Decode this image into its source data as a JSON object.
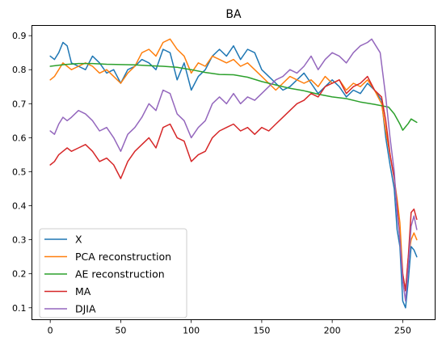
{
  "chart_data": {
    "type": "line",
    "title": "BA",
    "xlabel": "",
    "ylabel": "",
    "xlim": [
      -13,
      273
    ],
    "ylim": [
      0.065,
      0.93
    ],
    "xticks": [
      0,
      50,
      100,
      150,
      200,
      250
    ],
    "xtick_labels": [
      "0",
      "50",
      "100",
      "150",
      "200",
      "250"
    ],
    "yticks": [
      0.1,
      0.2,
      0.3,
      0.4,
      0.5,
      0.6,
      0.7,
      0.8,
      0.9
    ],
    "ytick_labels": [
      "0.1",
      "0.2",
      "0.3",
      "0.4",
      "0.5",
      "0.6",
      "0.7",
      "0.8",
      "0.9"
    ],
    "grid": false,
    "legend_position": "lower-left",
    "series": [
      {
        "name": "X",
        "color": "#1f77b4",
        "x": [
          0,
          3,
          6,
          9,
          12,
          15,
          20,
          25,
          30,
          35,
          40,
          45,
          50,
          55,
          60,
          65,
          70,
          75,
          80,
          85,
          90,
          95,
          100,
          105,
          110,
          115,
          120,
          125,
          130,
          135,
          140,
          145,
          150,
          155,
          160,
          165,
          170,
          175,
          180,
          185,
          190,
          195,
          200,
          205,
          210,
          215,
          220,
          225,
          230,
          235,
          238,
          241,
          244,
          246,
          248,
          250,
          252,
          254,
          256,
          258,
          260
        ],
        "y": [
          0.84,
          0.83,
          0.85,
          0.88,
          0.87,
          0.82,
          0.81,
          0.8,
          0.84,
          0.82,
          0.79,
          0.8,
          0.76,
          0.8,
          0.81,
          0.83,
          0.82,
          0.8,
          0.86,
          0.85,
          0.77,
          0.82,
          0.74,
          0.78,
          0.8,
          0.84,
          0.86,
          0.84,
          0.87,
          0.83,
          0.86,
          0.85,
          0.8,
          0.78,
          0.76,
          0.74,
          0.75,
          0.77,
          0.79,
          0.76,
          0.73,
          0.75,
          0.77,
          0.75,
          0.72,
          0.74,
          0.73,
          0.76,
          0.74,
          0.71,
          0.6,
          0.52,
          0.45,
          0.33,
          0.28,
          0.12,
          0.1,
          0.18,
          0.28,
          0.27,
          0.25
        ]
      },
      {
        "name": "PCA reconstruction",
        "color": "#ff7f0e",
        "x": [
          0,
          3,
          6,
          9,
          12,
          15,
          20,
          25,
          30,
          35,
          40,
          45,
          50,
          55,
          60,
          65,
          70,
          75,
          80,
          85,
          90,
          95,
          100,
          105,
          110,
          115,
          120,
          125,
          130,
          135,
          140,
          145,
          150,
          155,
          160,
          165,
          170,
          175,
          180,
          185,
          190,
          195,
          200,
          205,
          210,
          215,
          220,
          225,
          230,
          235,
          238,
          241,
          244,
          246,
          248,
          250,
          252,
          254,
          256,
          258,
          260
        ],
        "y": [
          0.77,
          0.78,
          0.8,
          0.82,
          0.81,
          0.8,
          0.81,
          0.82,
          0.81,
          0.79,
          0.8,
          0.78,
          0.76,
          0.79,
          0.81,
          0.85,
          0.86,
          0.84,
          0.88,
          0.89,
          0.86,
          0.84,
          0.79,
          0.82,
          0.81,
          0.84,
          0.83,
          0.82,
          0.83,
          0.81,
          0.82,
          0.8,
          0.78,
          0.76,
          0.74,
          0.76,
          0.78,
          0.77,
          0.76,
          0.77,
          0.75,
          0.78,
          0.76,
          0.77,
          0.74,
          0.76,
          0.75,
          0.77,
          0.74,
          0.7,
          0.62,
          0.55,
          0.48,
          0.42,
          0.35,
          0.2,
          0.15,
          0.25,
          0.3,
          0.32,
          0.3
        ]
      },
      {
        "name": "AE reconstruction",
        "color": "#2ca02c",
        "x": [
          0,
          10,
          20,
          30,
          40,
          50,
          60,
          70,
          80,
          90,
          100,
          110,
          120,
          130,
          140,
          150,
          160,
          170,
          180,
          190,
          200,
          210,
          220,
          230,
          240,
          244,
          248,
          250,
          252,
          254,
          256,
          258,
          260
        ],
        "y": [
          0.81,
          0.815,
          0.818,
          0.818,
          0.816,
          0.815,
          0.814,
          0.812,
          0.81,
          0.807,
          0.8,
          0.792,
          0.786,
          0.785,
          0.778,
          0.765,
          0.755,
          0.745,
          0.738,
          0.728,
          0.72,
          0.715,
          0.705,
          0.698,
          0.69,
          0.67,
          0.64,
          0.622,
          0.632,
          0.642,
          0.655,
          0.65,
          0.645
        ]
      },
      {
        "name": "MA",
        "color": "#d62728",
        "x": [
          0,
          3,
          6,
          9,
          12,
          15,
          20,
          25,
          30,
          35,
          40,
          45,
          50,
          55,
          60,
          65,
          70,
          75,
          80,
          85,
          90,
          95,
          100,
          105,
          110,
          115,
          120,
          125,
          130,
          135,
          140,
          145,
          150,
          155,
          160,
          165,
          170,
          175,
          180,
          185,
          190,
          195,
          200,
          205,
          210,
          215,
          220,
          225,
          230,
          235,
          238,
          241,
          244,
          246,
          248,
          250,
          252,
          254,
          256,
          258,
          260
        ],
        "y": [
          0.52,
          0.53,
          0.55,
          0.56,
          0.57,
          0.56,
          0.57,
          0.58,
          0.56,
          0.53,
          0.54,
          0.52,
          0.48,
          0.53,
          0.56,
          0.58,
          0.6,
          0.57,
          0.63,
          0.64,
          0.6,
          0.59,
          0.53,
          0.55,
          0.56,
          0.6,
          0.62,
          0.63,
          0.64,
          0.62,
          0.63,
          0.61,
          0.63,
          0.62,
          0.64,
          0.66,
          0.68,
          0.7,
          0.71,
          0.73,
          0.72,
          0.75,
          0.76,
          0.77,
          0.73,
          0.75,
          0.76,
          0.78,
          0.74,
          0.72,
          0.65,
          0.55,
          0.48,
          0.4,
          0.3,
          0.2,
          0.15,
          0.25,
          0.38,
          0.39,
          0.36
        ]
      },
      {
        "name": "DJIA",
        "color": "#9467bd",
        "x": [
          0,
          3,
          6,
          9,
          12,
          15,
          20,
          25,
          30,
          35,
          40,
          45,
          50,
          55,
          60,
          65,
          70,
          75,
          80,
          85,
          90,
          95,
          100,
          105,
          110,
          115,
          120,
          125,
          130,
          135,
          140,
          145,
          150,
          155,
          160,
          165,
          170,
          175,
          180,
          185,
          190,
          195,
          200,
          205,
          210,
          215,
          220,
          225,
          228,
          231,
          234,
          238,
          241,
          244,
          246,
          248,
          250,
          252,
          254,
          256,
          258,
          260
        ],
        "y": [
          0.62,
          0.61,
          0.64,
          0.66,
          0.65,
          0.66,
          0.68,
          0.67,
          0.65,
          0.62,
          0.63,
          0.6,
          0.56,
          0.61,
          0.63,
          0.66,
          0.7,
          0.68,
          0.74,
          0.73,
          0.67,
          0.65,
          0.6,
          0.63,
          0.65,
          0.7,
          0.72,
          0.7,
          0.73,
          0.7,
          0.72,
          0.71,
          0.73,
          0.75,
          0.77,
          0.78,
          0.8,
          0.79,
          0.81,
          0.84,
          0.8,
          0.83,
          0.85,
          0.84,
          0.82,
          0.85,
          0.87,
          0.88,
          0.89,
          0.87,
          0.85,
          0.72,
          0.6,
          0.5,
          0.38,
          0.3,
          0.18,
          0.12,
          0.22,
          0.34,
          0.37,
          0.33
        ]
      }
    ]
  }
}
